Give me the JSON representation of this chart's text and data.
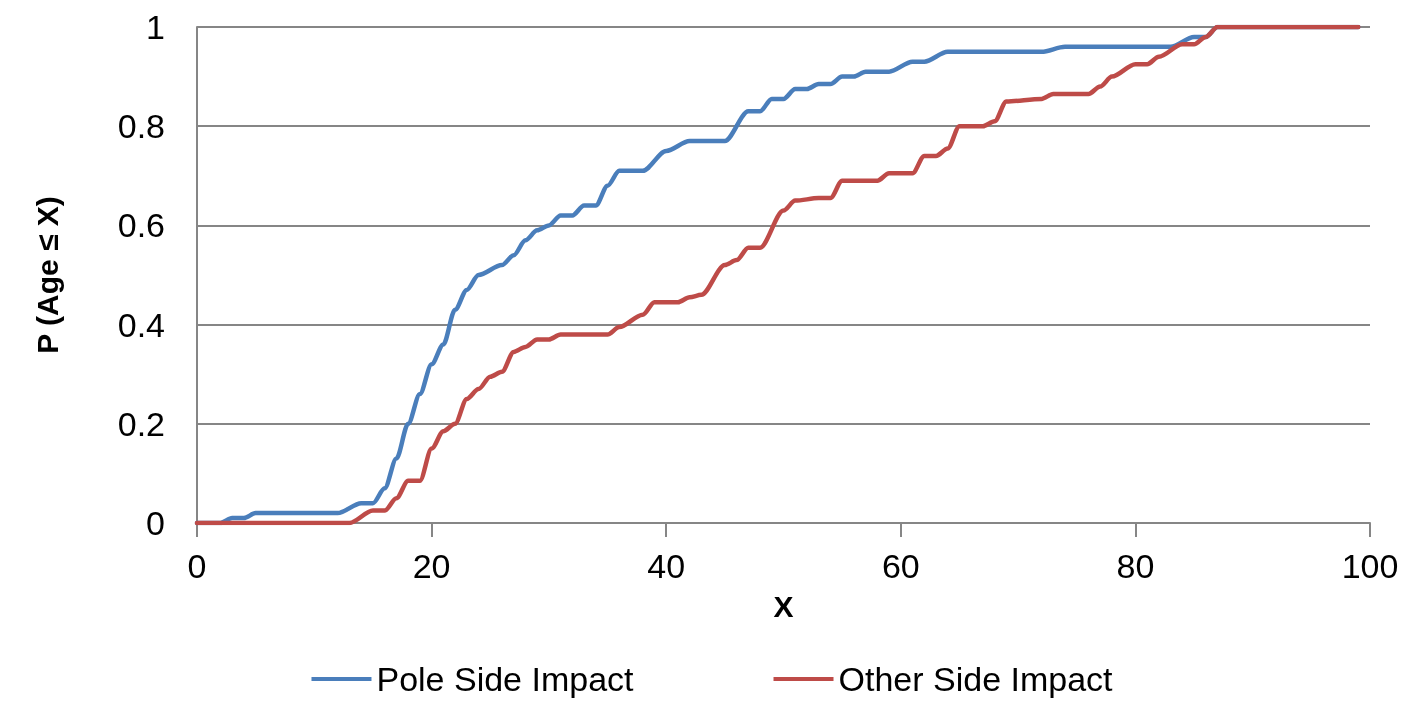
{
  "chart_data": {
    "type": "line",
    "xlabel": "X",
    "ylabel": "P (Age ≤ X)",
    "xlim": [
      0,
      100
    ],
    "xticks": [
      0,
      20,
      40,
      60,
      80,
      100
    ],
    "ylim": [
      0,
      1
    ],
    "yticks": [
      0,
      0.2,
      0.4,
      0.6,
      0.8,
      1
    ],
    "grid": "y",
    "legend": "bottom",
    "marker": "none",
    "line_style": "solid",
    "series": [
      {
        "name": "Pole Side Impact",
        "color": "#4a7ebb",
        "x": [
          0,
          2,
          3,
          4,
          5,
          12,
          14,
          15,
          16,
          17,
          18,
          19,
          20,
          21,
          22,
          23,
          24,
          26,
          27,
          28,
          29,
          30,
          31,
          32,
          33,
          34,
          35,
          36,
          38,
          40,
          42,
          45,
          47,
          48,
          49,
          50,
          51,
          52,
          53,
          54,
          55,
          56,
          57,
          59,
          61,
          62,
          64,
          72,
          74,
          83,
          85,
          86,
          87,
          99
        ],
        "values": [
          0,
          0,
          0.01,
          0.01,
          0.02,
          0.02,
          0.04,
          0.04,
          0.07,
          0.13,
          0.2,
          0.26,
          0.32,
          0.36,
          0.43,
          0.47,
          0.5,
          0.52,
          0.54,
          0.57,
          0.59,
          0.6,
          0.62,
          0.62,
          0.64,
          0.64,
          0.68,
          0.71,
          0.71,
          0.75,
          0.77,
          0.77,
          0.83,
          0.83,
          0.855,
          0.855,
          0.875,
          0.875,
          0.885,
          0.885,
          0.9,
          0.9,
          0.91,
          0.91,
          0.93,
          0.93,
          0.95,
          0.95,
          0.96,
          0.96,
          0.98,
          0.98,
          1,
          1
        ]
      },
      {
        "name": "Other Side Impact",
        "color": "#be4b48",
        "x": [
          0,
          12,
          13,
          15,
          16,
          17,
          18,
          19,
          20,
          21,
          22,
          23,
          24,
          25,
          26,
          27,
          28,
          29,
          30,
          31,
          35,
          36,
          38,
          39,
          41,
          42,
          43,
          45,
          46,
          47,
          48,
          50,
          51,
          53,
          54,
          55,
          57,
          58,
          59,
          61,
          62,
          63,
          64,
          65,
          67,
          68,
          69,
          72,
          73,
          76,
          77,
          78,
          80,
          81,
          82,
          84,
          85,
          86,
          87,
          99
        ],
        "values": [
          0,
          0,
          0,
          0.025,
          0.025,
          0.05,
          0.085,
          0.085,
          0.15,
          0.185,
          0.2,
          0.25,
          0.27,
          0.295,
          0.305,
          0.345,
          0.355,
          0.37,
          0.37,
          0.38,
          0.38,
          0.395,
          0.42,
          0.445,
          0.445,
          0.455,
          0.46,
          0.52,
          0.53,
          0.555,
          0.555,
          0.63,
          0.65,
          0.655,
          0.655,
          0.69,
          0.69,
          0.69,
          0.705,
          0.705,
          0.74,
          0.74,
          0.755,
          0.8,
          0.8,
          0.81,
          0.85,
          0.855,
          0.865,
          0.865,
          0.88,
          0.9,
          0.925,
          0.925,
          0.94,
          0.965,
          0.965,
          0.98,
          1,
          1
        ]
      }
    ]
  }
}
